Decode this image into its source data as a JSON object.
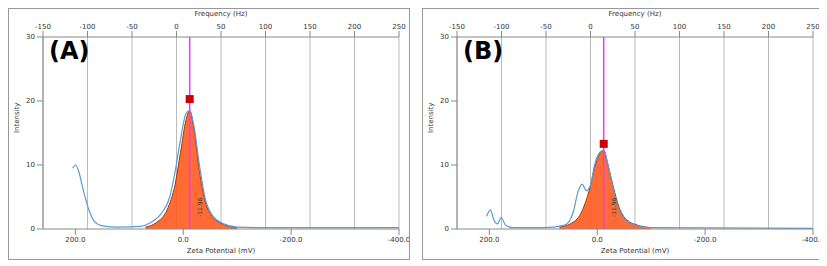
{
  "chart_data": [
    {
      "type": "line",
      "title": "(A)",
      "x_label": "Zeta Potential (mV)",
      "x2_label": "Frequency (Hz)",
      "y_label": "Intensity",
      "xlim": [
        260,
        -400
      ],
      "xticks": [
        {
          "value": 200,
          "label": "200.0"
        },
        {
          "value": 0,
          "label": "0.0"
        },
        {
          "value": -200,
          "label": "-200.0"
        },
        {
          "value": -400,
          "label": "-400.0"
        }
      ],
      "x2lim": [
        -150,
        250
      ],
      "x2ticks": [
        -150,
        -100,
        -50,
        0,
        50,
        100,
        150,
        200,
        250
      ],
      "ylim": [
        0,
        30
      ],
      "yticks": [
        0,
        10,
        20,
        30
      ],
      "grid": true,
      "series": [
        {
          "type": "line",
          "color": "#5b9bd5",
          "x": [
            205,
            200,
            195,
            185,
            175,
            165,
            150,
            120,
            80,
            60,
            40,
            25,
            15,
            5,
            -5,
            -12,
            -20,
            -30,
            -40,
            -55,
            -75,
            -100,
            -150,
            -250,
            -400
          ],
          "values": [
            9.5,
            10,
            9.3,
            6,
            3,
            1.2,
            0.5,
            0.3,
            0.4,
            1,
            2.5,
            5,
            9,
            14,
            18,
            18.5,
            16,
            10,
            5,
            2,
            0.8,
            0.3,
            0.2,
            0.2,
            0.2
          ]
        },
        {
          "type": "area",
          "color": "#ff5a1f",
          "x": [
            70,
            50,
            30,
            15,
            5,
            -5,
            -12,
            -20,
            -30,
            -40,
            -55,
            -75,
            -100
          ],
          "values": [
            0.3,
            1,
            3,
            7,
            12,
            17,
            18.5,
            15.5,
            9,
            4.5,
            1.8,
            0.7,
            0.2
          ]
        },
        {
          "type": "scatter",
          "color": "#cc0000",
          "marker": "square",
          "x": [
            -12
          ],
          "values": [
            20.3
          ]
        }
      ],
      "annotations": [
        {
          "x": -11.96,
          "label": "-11.96",
          "color": "#e040fb"
        }
      ]
    },
    {
      "type": "line",
      "title": "(B)",
      "x_label": "Zeta Potential (mV)",
      "x2_label": "Frequency (Hz)",
      "y_label": "Intensity",
      "xlim": [
        260,
        -400
      ],
      "xticks": [
        {
          "value": 200,
          "label": "200.0"
        },
        {
          "value": 0,
          "label": "0.0"
        },
        {
          "value": -200,
          "label": "-200.0"
        },
        {
          "value": -400,
          "label": "-400.0"
        }
      ],
      "x2lim": [
        -150,
        250
      ],
      "x2ticks": [
        -150,
        -100,
        -50,
        0,
        50,
        100,
        150,
        200,
        250
      ],
      "ylim": [
        0,
        30
      ],
      "yticks": [
        0,
        10,
        20,
        30
      ],
      "grid": true,
      "series": [
        {
          "type": "line",
          "color": "#5b9bd5",
          "x": [
            205,
            198,
            192,
            185,
            178,
            170,
            155,
            100,
            60,
            45,
            35,
            28,
            20,
            12,
            5,
            -5,
            -12,
            -20,
            -30,
            -40,
            -55,
            -75,
            -100,
            -400
          ],
          "values": [
            2,
            3,
            1.5,
            0.8,
            1.8,
            0.6,
            0.2,
            0.2,
            0.6,
            2.5,
            6,
            7,
            6,
            7,
            10,
            12,
            12.3,
            10,
            6,
            3,
            1.2,
            0.5,
            0.2,
            0.1
          ]
        },
        {
          "type": "area",
          "color": "#ff5a1f",
          "x": [
            70,
            50,
            30,
            15,
            5,
            -5,
            -12,
            -20,
            -30,
            -40,
            -55,
            -75,
            -100
          ],
          "values": [
            0.3,
            0.8,
            2.5,
            6,
            9.5,
            11.8,
            12.3,
            10,
            6.5,
            3.5,
            1.4,
            0.6,
            0.2
          ]
        },
        {
          "type": "scatter",
          "color": "#cc0000",
          "marker": "square",
          "x": [
            -12
          ],
          "values": [
            13.3
          ]
        }
      ],
      "annotations": [
        {
          "x": -11.96,
          "label": "-11.96",
          "color": "#e040fb"
        }
      ]
    }
  ]
}
